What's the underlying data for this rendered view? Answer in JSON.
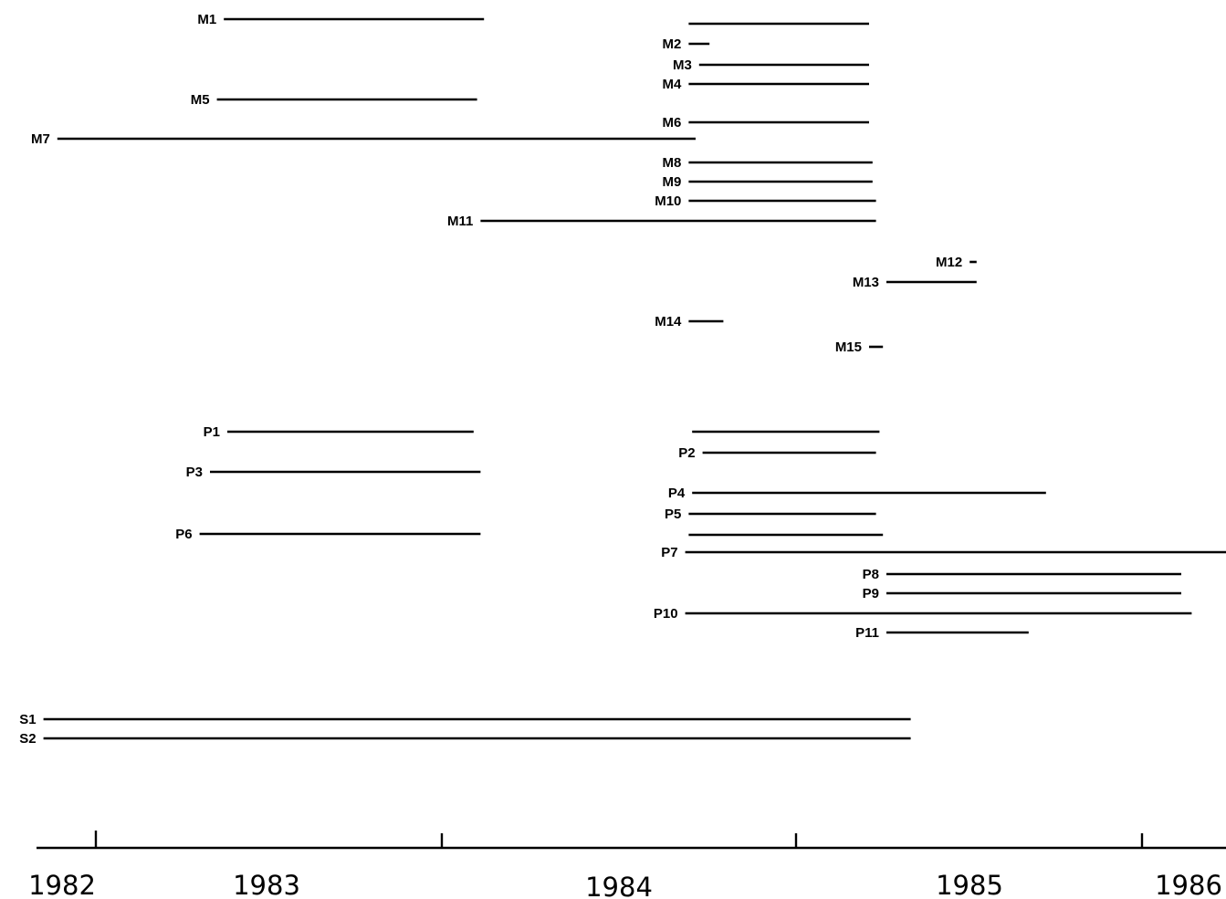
{
  "chart_data": {
    "type": "gantt",
    "title": "",
    "xlabel": "",
    "ylabel": "",
    "x_tick_labels": [
      "1982",
      "1983",
      "1984",
      "1985",
      "1986"
    ],
    "bars": [
      {
        "label": "M1",
        "start": 1982.54,
        "end": 1983.29
      },
      {
        "label": "",
        "start": 1983.88,
        "end": 1984.4
      },
      {
        "label": "M2",
        "start": 1983.88,
        "end": 1983.94
      },
      {
        "label": "M3",
        "start": 1983.91,
        "end": 1984.4
      },
      {
        "label": "M4",
        "start": 1983.88,
        "end": 1984.4
      },
      {
        "label": "M5",
        "start": 1982.52,
        "end": 1983.27
      },
      {
        "label": "M6",
        "start": 1983.88,
        "end": 1984.4
      },
      {
        "label": "M7",
        "start": 1982.06,
        "end": 1983.9
      },
      {
        "label": "M8",
        "start": 1983.88,
        "end": 1984.41
      },
      {
        "label": "M9",
        "start": 1983.88,
        "end": 1984.41
      },
      {
        "label": "M10",
        "start": 1983.88,
        "end": 1984.42
      },
      {
        "label": "M11",
        "start": 1983.28,
        "end": 1984.42
      },
      {
        "label": "M12",
        "start": 1984.69,
        "end": 1984.71
      },
      {
        "label": "M13",
        "start": 1984.45,
        "end": 1984.71
      },
      {
        "label": "M14",
        "start": 1983.88,
        "end": 1983.98
      },
      {
        "label": "M15",
        "start": 1984.4,
        "end": 1984.44
      },
      {
        "label": "P1",
        "start": 1982.55,
        "end": 1983.26
      },
      {
        "label": "",
        "start": 1983.89,
        "end": 1984.43
      },
      {
        "label": "P2",
        "start": 1983.92,
        "end": 1984.42
      },
      {
        "label": "P3",
        "start": 1982.5,
        "end": 1983.28
      },
      {
        "label": "P4",
        "start": 1983.89,
        "end": 1984.91
      },
      {
        "label": "P5",
        "start": 1983.88,
        "end": 1984.42
      },
      {
        "label": "P6",
        "start": 1982.47,
        "end": 1983.28
      },
      {
        "label": "",
        "start": 1983.88,
        "end": 1984.44
      },
      {
        "label": "P7",
        "start": 1983.87,
        "end": 1985.53
      },
      {
        "label": "P8",
        "start": 1984.45,
        "end": 1985.3
      },
      {
        "label": "P9",
        "start": 1984.45,
        "end": 1985.3
      },
      {
        "label": "P10",
        "start": 1983.87,
        "end": 1985.33
      },
      {
        "label": "P11",
        "start": 1984.45,
        "end": 1984.86
      },
      {
        "label": "S1",
        "start": 1982.02,
        "end": 1984.52
      },
      {
        "label": "S2",
        "start": 1982.02,
        "end": 1984.52
      }
    ]
  }
}
